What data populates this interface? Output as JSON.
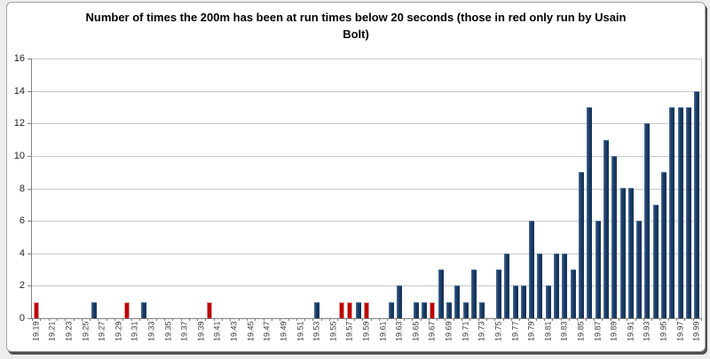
{
  "chart_data": {
    "type": "bar",
    "title": "Number of times the 200m has been at run times below 20 seconds (those in red only run by Usain Bolt)",
    "xlabel": "",
    "ylabel": "",
    "ylim": [
      0,
      16
    ],
    "ytick_step": 2,
    "yticks": [
      0,
      2,
      4,
      6,
      8,
      10,
      12,
      14,
      16
    ],
    "grid": true,
    "legend_position": "none",
    "x_label_every_other_category": true,
    "categories": [
      "19.19",
      "19.20",
      "19.21",
      "19.22",
      "19.23",
      "19.24",
      "19.25",
      "19.26",
      "19.27",
      "19.28",
      "19.29",
      "19.30",
      "19.31",
      "19.32",
      "19.33",
      "19.34",
      "19.35",
      "19.36",
      "19.37",
      "19.38",
      "19.39",
      "19.40",
      "19.41",
      "19.42",
      "19.43",
      "19.44",
      "19.45",
      "19.46",
      "19.47",
      "19.48",
      "19.49",
      "19.50",
      "19.51",
      "19.52",
      "19.53",
      "19.54",
      "19.55",
      "19.56",
      "19.57",
      "19.58",
      "19.59",
      "19.60",
      "19.61",
      "19.62",
      "19.63",
      "19.64",
      "19.65",
      "19.66",
      "19.67",
      "19.68",
      "19.69",
      "19.70",
      "19.71",
      "19.72",
      "19.73",
      "19.74",
      "19.75",
      "19.76",
      "19.77",
      "19.78",
      "19.79",
      "19.80",
      "19.81",
      "19.82",
      "19.83",
      "19.84",
      "19.85",
      "19.86",
      "19.87",
      "19.88",
      "19.89",
      "19.90",
      "19.91",
      "19.92",
      "19.93",
      "19.94",
      "19.95",
      "19.96",
      "19.97",
      "19.98",
      "19.99"
    ],
    "values": [
      1,
      0,
      0,
      0,
      0,
      0,
      0,
      1,
      0,
      0,
      0,
      1,
      0,
      1,
      0,
      0,
      0,
      0,
      0,
      0,
      0,
      1,
      0,
      0,
      0,
      0,
      0,
      0,
      0,
      0,
      0,
      0,
      0,
      0,
      1,
      0,
      0,
      1,
      1,
      1,
      1,
      0,
      0,
      1,
      2,
      0,
      1,
      1,
      1,
      3,
      1,
      2,
      1,
      3,
      1,
      0,
      3,
      4,
      2,
      2,
      6,
      4,
      2,
      4,
      4,
      3,
      9,
      13,
      6,
      11,
      10,
      8,
      8,
      6,
      12,
      7,
      9,
      13,
      13,
      13,
      14
    ],
    "bolt_only_categories": [
      "19.19",
      "19.30",
      "19.40",
      "19.56",
      "19.57",
      "19.59",
      "19.67"
    ],
    "colors": {
      "default_bar": "#17375E",
      "bolt_only_bar": "#C00000",
      "gridline": "#C9C9C9",
      "axis": "#7F7F7F"
    }
  }
}
